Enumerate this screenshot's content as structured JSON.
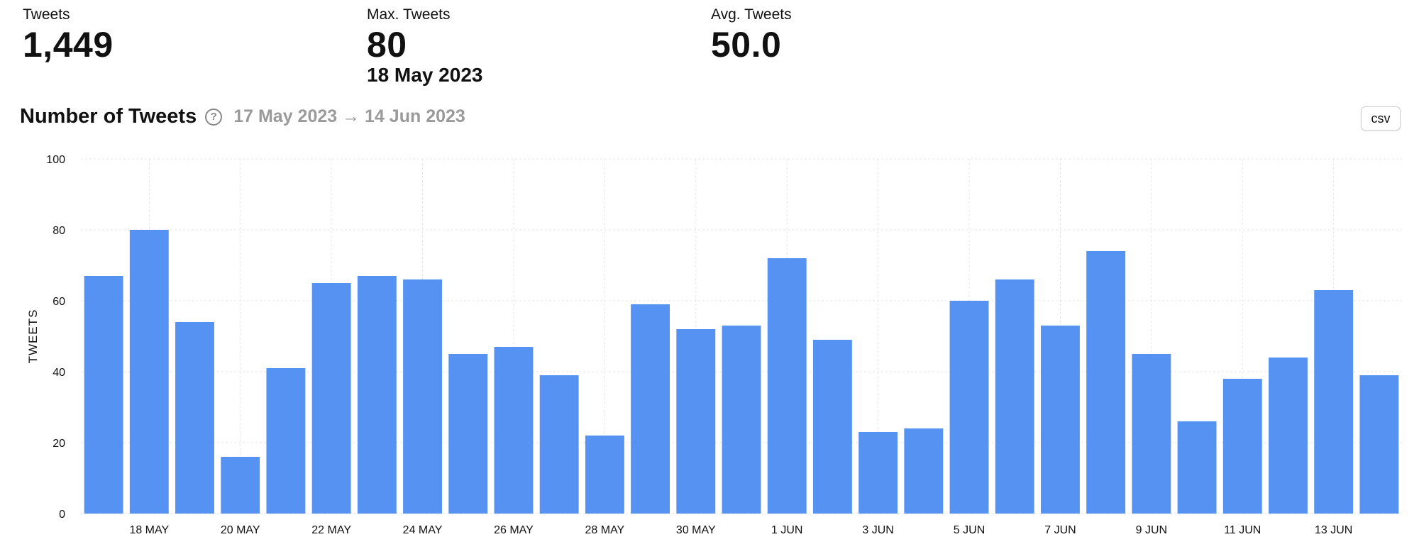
{
  "stats": {
    "tweets": {
      "label": "Tweets",
      "value": "1,449"
    },
    "max": {
      "label": "Max. Tweets",
      "value": "80",
      "date": "18 May 2023"
    },
    "avg": {
      "label": "Avg. Tweets",
      "value": "50.0"
    }
  },
  "chart_header": {
    "title": "Number of Tweets",
    "help_icon": "question-circle-icon",
    "date_range": "17 May 2023 → 14 Jun 2023",
    "csv_label": "csv"
  },
  "colors": {
    "bar": "#5592f2",
    "grid": "#e6e6e6"
  },
  "chart_data": {
    "type": "bar",
    "x": [
      "17 MAY",
      "18 MAY",
      "19 MAY",
      "20 MAY",
      "21 MAY",
      "22 MAY",
      "23 MAY",
      "24 MAY",
      "25 MAY",
      "26 MAY",
      "27 MAY",
      "28 MAY",
      "29 MAY",
      "30 MAY",
      "31 MAY",
      "1 JUN",
      "2 JUN",
      "3 JUN",
      "4 JUN",
      "5 JUN",
      "6 JUN",
      "7 JUN",
      "8 JUN",
      "9 JUN",
      "10 JUN",
      "11 JUN",
      "12 JUN",
      "13 JUN",
      "14 JUN"
    ],
    "values": [
      67,
      80,
      54,
      16,
      41,
      65,
      67,
      66,
      45,
      47,
      39,
      22,
      59,
      52,
      53,
      72,
      49,
      23,
      24,
      60,
      66,
      53,
      74,
      45,
      26,
      38,
      44,
      63,
      39
    ],
    "x_tick_labels": [
      "18 MAY",
      "20 MAY",
      "22 MAY",
      "24 MAY",
      "26 MAY",
      "28 MAY",
      "30 MAY",
      "1 JUN",
      "3 JUN",
      "5 JUN",
      "7 JUN",
      "9 JUN",
      "11 JUN",
      "13 JUN"
    ],
    "y_ticks": [
      0,
      20,
      40,
      60,
      80,
      100
    ],
    "ylim": [
      0,
      100
    ],
    "ylabel": "TWEETS",
    "xlabel": "",
    "grid": true
  }
}
